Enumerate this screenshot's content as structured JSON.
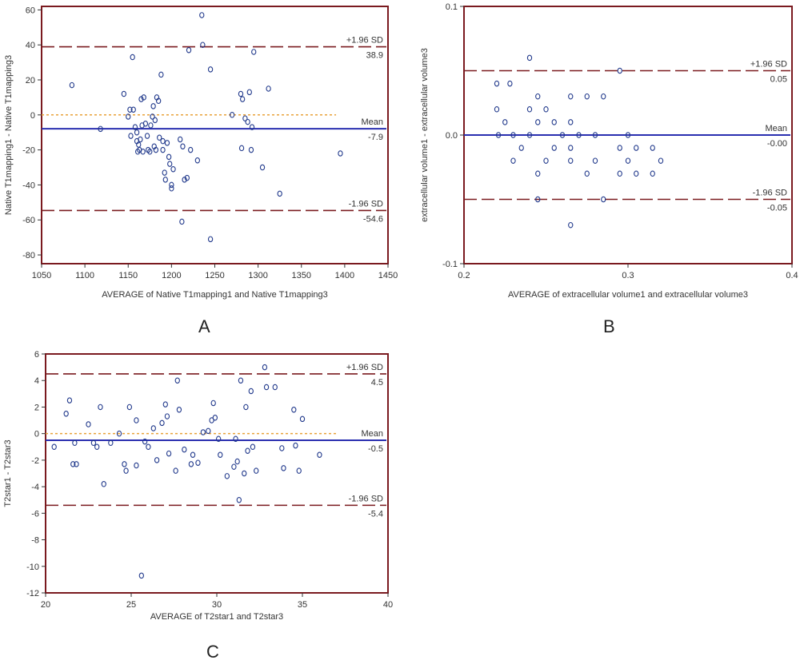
{
  "panels": [
    {
      "id": "a",
      "letter": "A",
      "chart_data": {
        "type": "scatter",
        "subtype": "bland-altman",
        "xlabel": "AVERAGE of Native T1mapping1 and Native T1mapping3",
        "ylabel": "Native T1mapping1 - Native T1mapping3",
        "xlim": [
          1050,
          1450
        ],
        "ylim": [
          -85,
          62
        ],
        "xticks": [
          "1050",
          "1100",
          "1150",
          "1200",
          "1250",
          "1300",
          "1350",
          "1400",
          "1450"
        ],
        "xtick_values": [
          1050,
          1100,
          1150,
          1200,
          1250,
          1300,
          1350,
          1400,
          1450
        ],
        "yticks": [
          "60",
          "40",
          "20",
          "0",
          "-20",
          "-40",
          "-60",
          "-80"
        ],
        "ytick_values": [
          60,
          40,
          20,
          0,
          -20,
          -40,
          -60,
          -80
        ],
        "mean": -7.9,
        "upper_loa": 38.9,
        "lower_loa": -54.6,
        "labels": {
          "upper": "+1.96 SD",
          "upper_value": "38.9",
          "mean": "Mean",
          "mean_value": "-7.9",
          "lower": "-1.96 SD",
          "lower_value": "-54.6"
        },
        "points": [
          [
            1085,
            17
          ],
          [
            1118,
            -8
          ],
          [
            1145,
            12
          ],
          [
            1150,
            -1
          ],
          [
            1152,
            3
          ],
          [
            1153,
            -12
          ],
          [
            1155,
            33
          ],
          [
            1156,
            3
          ],
          [
            1158,
            -7
          ],
          [
            1160,
            -10
          ],
          [
            1160,
            -15
          ],
          [
            1161,
            -21
          ],
          [
            1162,
            -17
          ],
          [
            1163,
            -20
          ],
          [
            1164,
            -14
          ],
          [
            1165,
            9
          ],
          [
            1166,
            -6
          ],
          [
            1167,
            -21
          ],
          [
            1168,
            10
          ],
          [
            1170,
            -5
          ],
          [
            1172,
            -12
          ],
          [
            1173,
            -20
          ],
          [
            1175,
            -21
          ],
          [
            1176,
            -6
          ],
          [
            1178,
            -1
          ],
          [
            1179,
            5
          ],
          [
            1180,
            -18
          ],
          [
            1181,
            -3
          ],
          [
            1182,
            -20
          ],
          [
            1183,
            10
          ],
          [
            1185,
            8
          ],
          [
            1186,
            -13
          ],
          [
            1188,
            23
          ],
          [
            1190,
            -15
          ],
          [
            1190,
            -20
          ],
          [
            1192,
            -33
          ],
          [
            1193,
            -37
          ],
          [
            1195,
            -16
          ],
          [
            1197,
            -24
          ],
          [
            1198,
            -28
          ],
          [
            1200,
            -40
          ],
          [
            1200,
            -42
          ],
          [
            1202,
            -31
          ],
          [
            1210,
            -14
          ],
          [
            1212,
            -61
          ],
          [
            1213,
            -18
          ],
          [
            1215,
            -37
          ],
          [
            1218,
            -36
          ],
          [
            1220,
            37
          ],
          [
            1222,
            -20
          ],
          [
            1230,
            -26
          ],
          [
            1235,
            57
          ],
          [
            1236,
            40
          ],
          [
            1245,
            26
          ],
          [
            1245,
            -71
          ],
          [
            1270,
            0
          ],
          [
            1280,
            12
          ],
          [
            1281,
            -19
          ],
          [
            1282,
            9
          ],
          [
            1285,
            -2
          ],
          [
            1288,
            -4
          ],
          [
            1290,
            13
          ],
          [
            1292,
            -20
          ],
          [
            1293,
            -7
          ],
          [
            1295,
            36
          ],
          [
            1305,
            -30
          ],
          [
            1312,
            15
          ],
          [
            1325,
            -45
          ],
          [
            1395,
            -22
          ]
        ]
      }
    },
    {
      "id": "b",
      "letter": "B",
      "chart_data": {
        "type": "scatter",
        "subtype": "bland-altman",
        "xlabel": "AVERAGE of extracellular volume1 and extracellular volume3",
        "ylabel": "extracellular volume1 - extracellular volume3",
        "xlim": [
          0.2,
          0.4
        ],
        "ylim": [
          -0.1,
          0.1
        ],
        "xticks": [
          "0.2",
          "0.3",
          "0.4"
        ],
        "xtick_values": [
          0.2,
          0.3,
          0.4
        ],
        "yticks": [
          "0.1",
          "0.0",
          "-0.1"
        ],
        "ytick_values": [
          0.1,
          0.0,
          -0.1
        ],
        "mean": -0.0,
        "upper_loa": 0.05,
        "lower_loa": -0.05,
        "labels": {
          "upper": "+1.96 SD",
          "upper_value": "0.05",
          "mean": "Mean",
          "mean_value": "-0.00",
          "lower": "-1.96 SD",
          "lower_value": "-0.05"
        },
        "points": [
          [
            0.22,
            0.04
          ],
          [
            0.22,
            0.02
          ],
          [
            0.221,
            0.0
          ],
          [
            0.225,
            0.01
          ],
          [
            0.228,
            0.04
          ],
          [
            0.23,
            -0.02
          ],
          [
            0.23,
            0.0
          ],
          [
            0.235,
            -0.01
          ],
          [
            0.24,
            0.06
          ],
          [
            0.24,
            0.02
          ],
          [
            0.24,
            0.0
          ],
          [
            0.245,
            0.03
          ],
          [
            0.245,
            0.01
          ],
          [
            0.245,
            -0.03
          ],
          [
            0.245,
            -0.05
          ],
          [
            0.25,
            0.02
          ],
          [
            0.25,
            -0.02
          ],
          [
            0.255,
            0.01
          ],
          [
            0.255,
            -0.01
          ],
          [
            0.26,
            0.0
          ],
          [
            0.265,
            0.03
          ],
          [
            0.265,
            0.01
          ],
          [
            0.265,
            -0.01
          ],
          [
            0.265,
            -0.02
          ],
          [
            0.265,
            -0.07
          ],
          [
            0.27,
            0.0
          ],
          [
            0.275,
            0.03
          ],
          [
            0.275,
            -0.03
          ],
          [
            0.28,
            -0.02
          ],
          [
            0.28,
            0.0
          ],
          [
            0.285,
            0.03
          ],
          [
            0.285,
            -0.05
          ],
          [
            0.295,
            0.05
          ],
          [
            0.295,
            -0.01
          ],
          [
            0.295,
            -0.03
          ],
          [
            0.3,
            0.0
          ],
          [
            0.3,
            -0.02
          ],
          [
            0.305,
            -0.01
          ],
          [
            0.305,
            -0.03
          ],
          [
            0.315,
            -0.01
          ],
          [
            0.315,
            -0.03
          ],
          [
            0.32,
            -0.02
          ]
        ]
      }
    },
    {
      "id": "c",
      "letter": "C",
      "chart_data": {
        "type": "scatter",
        "subtype": "bland-altman",
        "xlabel": "AVERAGE of T2star1 and T2star3",
        "ylabel": "T2star1 - T2star3",
        "xlim": [
          20,
          40
        ],
        "ylim": [
          -12,
          6
        ],
        "xticks": [
          "20",
          "25",
          "30",
          "35",
          "40"
        ],
        "xtick_values": [
          20,
          25,
          30,
          35,
          40
        ],
        "yticks": [
          "6",
          "4",
          "2",
          "0",
          "-2",
          "-4",
          "-6",
          "-8",
          "-10",
          "-12"
        ],
        "ytick_values": [
          6,
          4,
          2,
          0,
          -2,
          -4,
          -6,
          -8,
          -10,
          -12
        ],
        "mean": -0.5,
        "upper_loa": 4.5,
        "lower_loa": -5.4,
        "labels": {
          "upper": "+1.96 SD",
          "upper_value": "4.5",
          "mean": "Mean",
          "mean_value": "-0.5",
          "lower": "-1.96 SD",
          "lower_value": "-5.4"
        },
        "points": [
          [
            20.5,
            -1.0
          ],
          [
            21.2,
            1.5
          ],
          [
            21.4,
            2.5
          ],
          [
            21.6,
            -2.3
          ],
          [
            21.8,
            -2.3
          ],
          [
            21.7,
            -0.7
          ],
          [
            22.5,
            0.7
          ],
          [
            22.8,
            -0.7
          ],
          [
            23.0,
            -1.0
          ],
          [
            23.2,
            2.0
          ],
          [
            23.4,
            -3.8
          ],
          [
            23.8,
            -0.7
          ],
          [
            24.3,
            0.0
          ],
          [
            24.6,
            -2.3
          ],
          [
            24.7,
            -2.8
          ],
          [
            24.9,
            2.0
          ],
          [
            25.3,
            1.0
          ],
          [
            25.3,
            -2.4
          ],
          [
            25.6,
            -10.7
          ],
          [
            25.8,
            -0.6
          ],
          [
            26.0,
            -1.0
          ],
          [
            26.3,
            0.4
          ],
          [
            26.5,
            -2.0
          ],
          [
            26.8,
            0.8
          ],
          [
            27.0,
            2.2
          ],
          [
            27.1,
            1.3
          ],
          [
            27.2,
            -1.5
          ],
          [
            27.6,
            -2.8
          ],
          [
            27.7,
            4.0
          ],
          [
            27.8,
            1.8
          ],
          [
            28.1,
            -1.2
          ],
          [
            28.5,
            -2.3
          ],
          [
            28.6,
            -1.6
          ],
          [
            28.9,
            -2.2
          ],
          [
            29.2,
            0.1
          ],
          [
            29.5,
            0.2
          ],
          [
            29.7,
            1.0
          ],
          [
            29.8,
            2.3
          ],
          [
            29.9,
            1.2
          ],
          [
            30.1,
            -0.4
          ],
          [
            30.2,
            -1.6
          ],
          [
            30.6,
            -3.2
          ],
          [
            31.0,
            -2.5
          ],
          [
            31.1,
            -0.4
          ],
          [
            31.2,
            -2.1
          ],
          [
            31.3,
            -5.0
          ],
          [
            31.4,
            4.0
          ],
          [
            31.6,
            -3.0
          ],
          [
            31.7,
            2.0
          ],
          [
            31.8,
            -1.3
          ],
          [
            32.0,
            3.2
          ],
          [
            32.1,
            -1.0
          ],
          [
            32.3,
            -2.8
          ],
          [
            32.8,
            5.0
          ],
          [
            32.9,
            3.5
          ],
          [
            33.4,
            3.5
          ],
          [
            33.8,
            -1.1
          ],
          [
            33.9,
            -2.6
          ],
          [
            34.5,
            1.8
          ],
          [
            34.6,
            -0.9
          ],
          [
            34.8,
            -2.8
          ],
          [
            35.0,
            1.1
          ],
          [
            36.0,
            -1.6
          ]
        ]
      }
    }
  ],
  "colors": {
    "frame": "#7a1a1f",
    "loa": "#7a1a1f",
    "mean": "#2a2fb0",
    "zero": "#e8a23a",
    "point": "#223a8c"
  }
}
